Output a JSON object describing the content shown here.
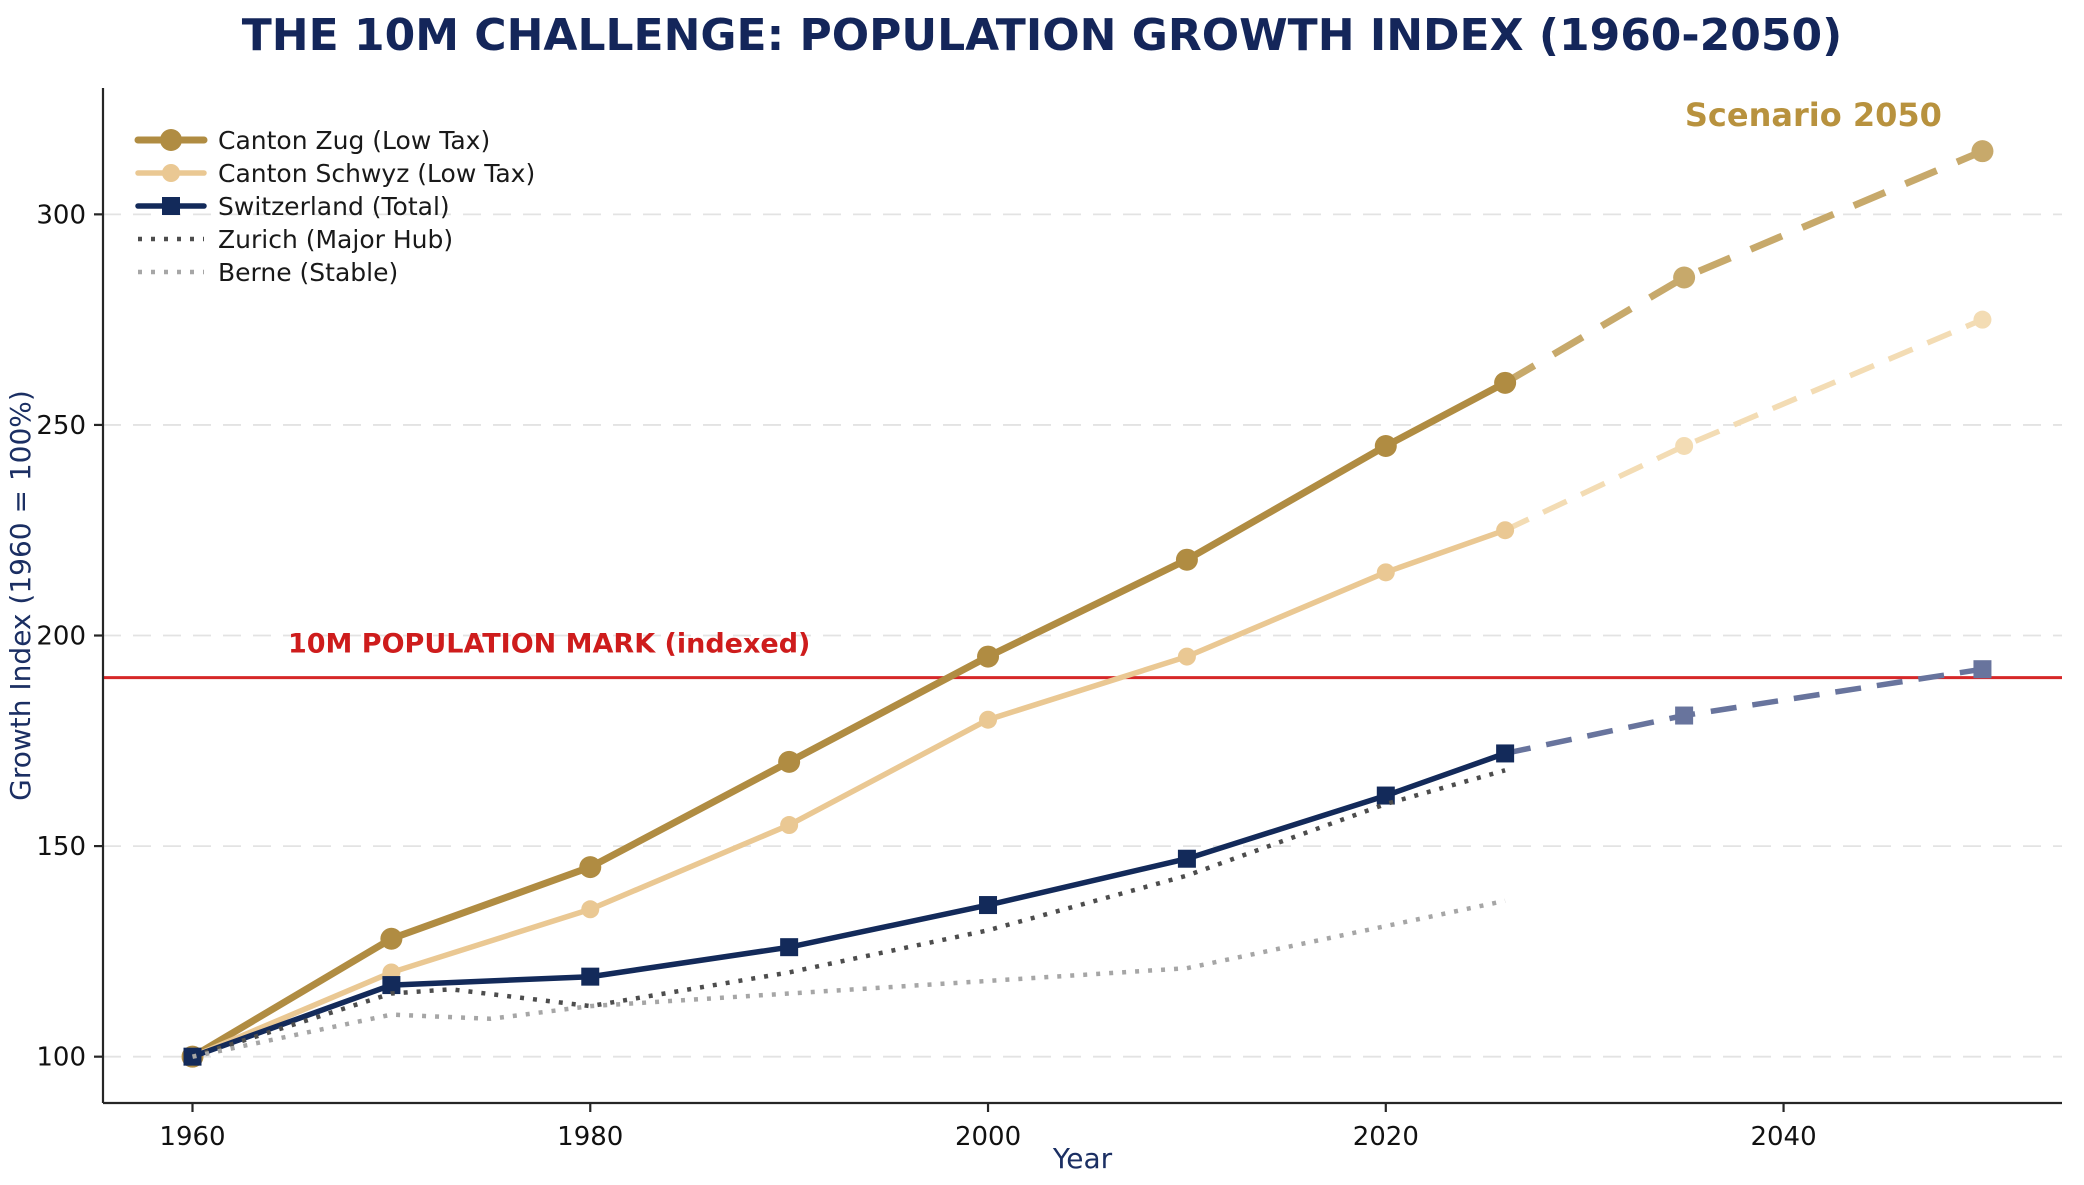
{
  "chart_data": {
    "type": "line",
    "title": "THE 10M CHALLENGE: POPULATION GROWTH INDEX (1960-2050)",
    "title_color": "#14265a",
    "xlabel": "Year",
    "ylabel": "Growth Index (1960 = 100%)",
    "axis_label_color": "#1b2f63",
    "tick_label_color": "#111111",
    "x_ticks": [
      1960,
      1980,
      2000,
      2020,
      2040
    ],
    "y_ticks": [
      100,
      150,
      200,
      250,
      300
    ],
    "xlim": [
      1955.5,
      2054
    ],
    "ylim": [
      89,
      330
    ],
    "grid": {
      "horizontal": true,
      "style": "dashed",
      "color": "#e3e3e3"
    },
    "spine_color": "#262626",
    "reference_line": {
      "y": 190,
      "color": "#d62728",
      "width": 3
    },
    "annotations": [
      {
        "id": "ten-m-population-mark-label",
        "text": "10M POPULATION MARK (indexed)",
        "color": "#ce1c1c",
        "bold": true,
        "x": 1964.8,
        "y": 196,
        "anchor": "start",
        "font_size": 27
      },
      {
        "id": "scenario-2050-label",
        "text": "Scenario 2050",
        "color": "#b8923e",
        "bold": true,
        "x": 2041.5,
        "y": 321,
        "anchor": "middle",
        "font_size": 32
      }
    ],
    "legend": {
      "position": "upper-left",
      "text_color": "#191919",
      "font_size": 25
    },
    "series": [
      {
        "name": "Canton Zug (Low Tax)",
        "color": "#b08c42",
        "forecast_color": "#c7a96b",
        "marker": "circle",
        "marker_size": 11,
        "line_width": 7,
        "line_style": "solid",
        "points": [
          [
            1960,
            100
          ],
          [
            1970,
            128
          ],
          [
            1980,
            145
          ],
          [
            1990,
            170
          ],
          [
            2000,
            195
          ],
          [
            2010,
            218
          ],
          [
            2020,
            245
          ],
          [
            2026,
            260
          ]
        ],
        "forecast_points": [
          [
            2026,
            260
          ],
          [
            2035,
            285
          ],
          [
            2050,
            315
          ]
        ]
      },
      {
        "name": "Canton Schwyz (Low Tax)",
        "color": "#eac893",
        "forecast_color": "#f3dcb4",
        "marker": "circle",
        "marker_size": 9,
        "line_width": 5.5,
        "line_style": "solid",
        "points": [
          [
            1960,
            100
          ],
          [
            1970,
            120
          ],
          [
            1980,
            135
          ],
          [
            1990,
            155
          ],
          [
            2000,
            180
          ],
          [
            2010,
            195
          ],
          [
            2020,
            215
          ],
          [
            2026,
            225
          ]
        ],
        "forecast_points": [
          [
            2026,
            225
          ],
          [
            2035,
            245
          ],
          [
            2050,
            275
          ]
        ]
      },
      {
        "name": "Switzerland (Total)",
        "color": "#132a5a",
        "forecast_color": "#68749d",
        "marker": "square",
        "marker_size": 9,
        "line_width": 5.5,
        "line_style": "solid",
        "points": [
          [
            1960,
            100
          ],
          [
            1970,
            117
          ],
          [
            1980,
            119
          ],
          [
            1990,
            126
          ],
          [
            2000,
            136
          ],
          [
            2010,
            147
          ],
          [
            2020,
            162
          ],
          [
            2026,
            172
          ]
        ],
        "forecast_points": [
          [
            2026,
            172
          ],
          [
            2035,
            181
          ],
          [
            2050,
            192
          ]
        ]
      },
      {
        "name": "Zurich (Major Hub)",
        "color": "#4d4d4d",
        "marker": "none",
        "marker_size": 0,
        "line_width": 4.5,
        "line_style": "dotted",
        "points": [
          [
            1960,
            100
          ],
          [
            1970,
            115
          ],
          [
            1973,
            116
          ],
          [
            1980,
            112
          ],
          [
            1990,
            120
          ],
          [
            2000,
            130
          ],
          [
            2010,
            143
          ],
          [
            2020,
            160
          ],
          [
            2026,
            168
          ]
        ]
      },
      {
        "name": "Berne (Stable)",
        "color": "#a6a6a6",
        "marker": "none",
        "marker_size": 0,
        "line_width": 4.5,
        "line_style": "dotted",
        "points": [
          [
            1960,
            100
          ],
          [
            1970,
            110
          ],
          [
            1975,
            109
          ],
          [
            1980,
            112
          ],
          [
            1990,
            115
          ],
          [
            2000,
            118
          ],
          [
            2010,
            121
          ],
          [
            2020,
            131
          ],
          [
            2026,
            137
          ]
        ]
      }
    ]
  }
}
